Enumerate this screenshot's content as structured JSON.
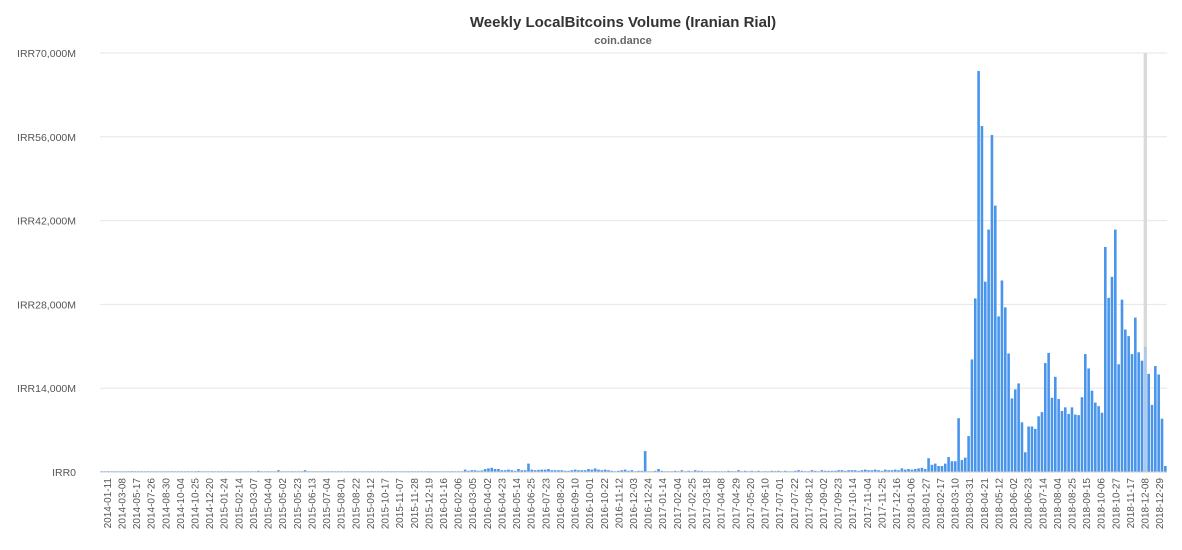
{
  "chart_data": {
    "type": "bar",
    "title": "Weekly LocalBitcoins Volume (Iranian Rial)",
    "subtitle": "coin.dance",
    "xlabel": "",
    "ylabel": "",
    "ylim": [
      0,
      70000
    ],
    "y_unit": "M IRR",
    "y_ticks": [
      0,
      14000,
      28000,
      42000,
      56000,
      70000
    ],
    "y_tick_labels": [
      "IRR0",
      "IRR14,000M",
      "IRR28,000M",
      "IRR42,000M",
      "IRR56,000M",
      "IRR70,000M"
    ],
    "grid": true,
    "legend": "none",
    "bar_color": "#4a95ec",
    "partial_bar_color": "#a9c9f1",
    "highlight_color": "#d9d9d9",
    "highlight_category": "2018-12-08",
    "x_tick_labels": [
      "2014-01-11",
      "2014-03-08",
      "2014-05-17",
      "2014-07-26",
      "2014-08-30",
      "2014-10-04",
      "2014-10-25",
      "2014-12-20",
      "2015-01-24",
      "2015-02-14",
      "2015-03-07",
      "2015-04-04",
      "2015-05-02",
      "2015-05-23",
      "2015-06-13",
      "2015-07-04",
      "2015-08-01",
      "2015-08-22",
      "2015-09-12",
      "2015-10-17",
      "2015-11-07",
      "2015-11-28",
      "2015-12-19",
      "2016-01-16",
      "2016-02-06",
      "2016-03-05",
      "2016-04-02",
      "2016-04-23",
      "2016-05-14",
      "2016-06-25",
      "2016-07-23",
      "2016-08-20",
      "2016-09-10",
      "2016-10-01",
      "2016-10-22",
      "2016-11-12",
      "2016-12-03",
      "2016-12-24",
      "2017-01-14",
      "2017-02-04",
      "2017-02-25",
      "2017-03-18",
      "2017-04-08",
      "2017-04-29",
      "2017-05-20",
      "2017-06-10",
      "2017-07-01",
      "2017-07-22",
      "2017-08-12",
      "2017-09-02",
      "2017-09-23",
      "2017-10-14",
      "2017-11-04",
      "2017-11-25",
      "2017-12-16",
      "2018-01-06",
      "2018-01-27",
      "2018-02-17",
      "2018-03-10",
      "2018-03-31",
      "2018-04-21",
      "2018-05-12",
      "2018-06-02",
      "2018-06-23",
      "2018-07-14",
      "2018-08-04",
      "2018-08-25",
      "2018-09-15",
      "2018-10-06",
      "2018-10-27",
      "2018-11-17",
      "2018-12-08",
      "2018-12-29"
    ],
    "values": [
      50,
      30,
      40,
      20,
      60,
      30,
      20,
      40,
      80,
      150,
      30,
      30,
      40,
      30,
      60,
      30,
      10,
      20,
      30,
      40,
      50,
      40,
      30,
      40,
      50,
      40,
      120,
      50,
      60,
      160,
      80,
      40,
      60,
      30,
      40,
      20,
      60,
      40,
      50,
      40,
      30,
      40,
      50,
      20,
      40,
      30,
      60,
      200,
      100,
      100,
      80,
      60,
      50,
      300,
      40,
      40,
      60,
      40,
      50,
      60,
      80,
      300,
      100,
      100,
      50,
      40,
      100,
      60,
      100,
      70,
      80,
      100,
      60,
      80,
      60,
      30,
      50,
      40,
      70,
      50,
      100,
      80,
      70,
      50,
      100,
      20,
      40,
      60,
      120,
      50,
      100,
      40,
      80,
      50,
      60,
      40,
      60,
      100,
      80,
      30,
      60,
      50,
      40,
      30,
      50,
      40,
      60,
      20,
      80,
      400,
      200,
      300,
      300,
      200,
      250,
      500,
      600,
      700,
      500,
      500,
      300,
      300,
      400,
      300,
      200,
      500,
      300,
      300,
      1400,
      400,
      300,
      350,
      400,
      400,
      500,
      300,
      300,
      300,
      300,
      200,
      200,
      300,
      400,
      300,
      300,
      300,
      500,
      400,
      600,
      400,
      300,
      400,
      300,
      200,
      100,
      200,
      300,
      400,
      200,
      300,
      100,
      200,
      200,
      3500,
      100,
      100,
      200,
      500,
      200,
      100,
      100,
      100,
      200,
      100,
      300,
      100,
      200,
      100,
      300,
      200,
      200,
      100,
      100,
      100,
      150,
      50,
      100,
      100,
      200,
      150,
      100,
      300,
      100,
      200,
      100,
      200,
      100,
      200,
      100,
      150,
      100,
      200,
      150,
      200,
      100,
      200,
      100,
      100,
      200,
      300,
      200,
      150,
      100,
      300,
      200,
      100,
      300,
      200,
      200,
      200,
      200,
      300,
      300,
      200,
      300,
      300,
      300,
      200,
      300,
      400,
      300,
      300,
      400,
      300,
      200,
      400,
      300,
      300,
      400,
      300,
      600,
      400,
      500,
      400,
      500,
      600,
      700,
      500,
      2300,
      1200,
      1400,
      1000,
      1000,
      1400,
      2500,
      1800,
      1800,
      9000,
      2000,
      2400,
      6000,
      18800,
      29000,
      67000,
      57800,
      31800,
      40500,
      56300,
      44500,
      26000,
      32000,
      27500,
      19800,
      12300,
      13800,
      14800,
      8300,
      3300,
      7600,
      7600,
      7200,
      9300,
      10000,
      18200,
      19900,
      12400,
      15900,
      12200,
      10200,
      10800,
      9700,
      10800,
      9600,
      9500,
      12500,
      19700,
      17300,
      13600,
      11600,
      11000,
      9900,
      37600,
      29100,
      32600,
      40500,
      18000,
      28800,
      23800,
      22700,
      19700,
      25800,
      20000,
      18600,
      20900,
      16400,
      11200,
      17700,
      16300,
      8900,
      1000
    ],
    "partial_last_bars": 0
  }
}
